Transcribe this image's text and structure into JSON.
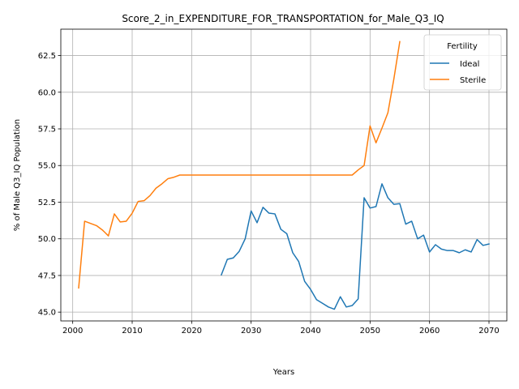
{
  "chart_data": {
    "type": "line",
    "title": "Score_2_in_EXPENDITURE_FOR_TRANSPORTATION_for_Male_Q3_IQ",
    "xlabel": "Years",
    "ylabel": "% of Male Q3_IQ Population",
    "xlim": [
      1998,
      2073
    ],
    "ylim": [
      44.4,
      64.3
    ],
    "x_ticks": [
      2000,
      2010,
      2020,
      2030,
      2040,
      2050,
      2060,
      2070
    ],
    "x_tick_labels": [
      "2000",
      "2010",
      "2020",
      "2030",
      "2040",
      "2050",
      "2060",
      "2070"
    ],
    "y_ticks": [
      45.0,
      47.5,
      50.0,
      52.5,
      55.0,
      57.5,
      60.0,
      62.5
    ],
    "y_tick_labels": [
      "45.0",
      "47.5",
      "50.0",
      "52.5",
      "55.0",
      "57.5",
      "60.0",
      "62.5"
    ],
    "grid": true,
    "legend": {
      "title": "Fertility",
      "position": "top-right"
    },
    "series": [
      {
        "name": "Ideal",
        "color": "#1f77b4",
        "x": [
          2025,
          2026,
          2027,
          2028,
          2029,
          2030,
          2031,
          2032,
          2033,
          2034,
          2035,
          2036,
          2037,
          2038,
          2039,
          2040,
          2041,
          2042,
          2043,
          2044,
          2045,
          2046,
          2047,
          2048,
          2049,
          2050,
          2051,
          2052,
          2053,
          2054,
          2055,
          2056,
          2057,
          2058,
          2059,
          2060,
          2061,
          2062,
          2063,
          2064,
          2065,
          2066,
          2067,
          2068,
          2069,
          2070
        ],
        "y": [
          47.55,
          48.6,
          48.7,
          49.15,
          50.0,
          51.9,
          51.1,
          52.15,
          51.75,
          51.7,
          50.65,
          50.35,
          49.05,
          48.45,
          47.1,
          46.55,
          45.85,
          45.6,
          45.35,
          45.2,
          46.05,
          45.35,
          45.45,
          45.9,
          52.8,
          52.1,
          52.2,
          53.75,
          52.8,
          52.35,
          52.4,
          51.0,
          51.2,
          50.0,
          50.25,
          49.1,
          49.6,
          49.3,
          49.2,
          49.2,
          49.05,
          49.25,
          49.1,
          49.95,
          49.55,
          49.65
        ]
      },
      {
        "name": "Sterile",
        "color": "#ff7f0e",
        "x": [
          2001,
          2002,
          2003,
          2004,
          2005,
          2006,
          2007,
          2008,
          2009,
          2010,
          2011,
          2012,
          2013,
          2014,
          2015,
          2016,
          2017,
          2018,
          2019,
          2020,
          2021,
          2022,
          2023,
          2024,
          2025,
          2026,
          2027,
          2028,
          2029,
          2030,
          2031,
          2032,
          2033,
          2034,
          2035,
          2036,
          2037,
          2038,
          2039,
          2040,
          2041,
          2042,
          2043,
          2044,
          2045,
          2046,
          2047,
          2048,
          2049,
          2050,
          2051,
          2052,
          2053,
          2054,
          2055
        ],
        "y": [
          46.65,
          51.2,
          51.05,
          50.9,
          50.6,
          50.2,
          51.7,
          51.15,
          51.2,
          51.75,
          52.55,
          52.6,
          52.95,
          53.45,
          53.75,
          54.1,
          54.2,
          54.35,
          54.35,
          54.35,
          54.35,
          54.35,
          54.35,
          54.35,
          54.35,
          54.35,
          54.35,
          54.35,
          54.35,
          54.35,
          54.35,
          54.35,
          54.35,
          54.35,
          54.35,
          54.35,
          54.35,
          54.35,
          54.35,
          54.35,
          54.35,
          54.35,
          54.35,
          54.35,
          54.35,
          54.35,
          54.35,
          54.7,
          55.0,
          57.7,
          56.55,
          57.55,
          58.6,
          60.9,
          63.45
        ]
      }
    ]
  }
}
